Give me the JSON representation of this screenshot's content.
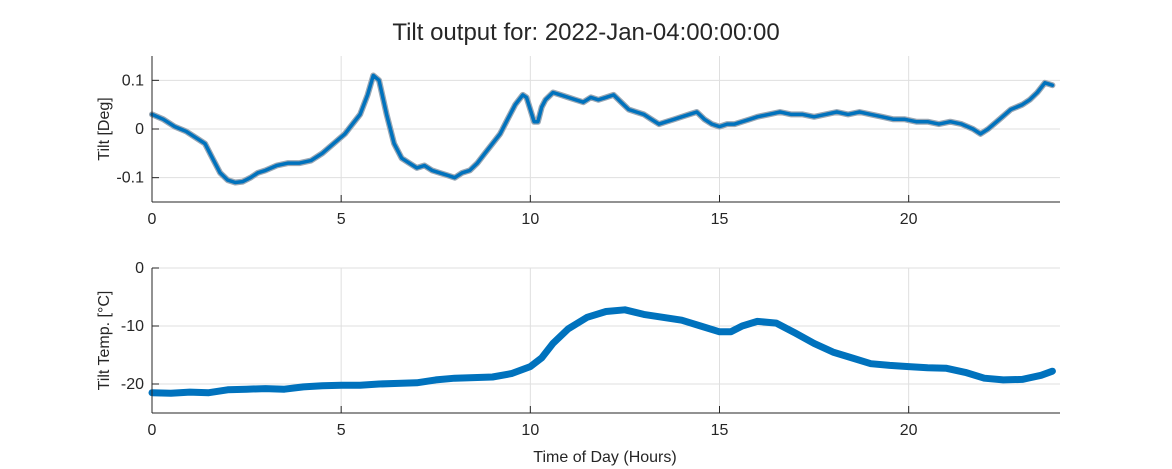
{
  "figure": {
    "title": "Tilt output for: 2022-Jan-04:00:00:00",
    "xlabel": "Time of Day (Hours)"
  },
  "chart_data": [
    {
      "type": "line",
      "ylabel": "Tilt [Deg]",
      "xlabel": "",
      "xlim": [
        0,
        24
      ],
      "ylim": [
        -0.15,
        0.15
      ],
      "xticks": [
        0,
        5,
        10,
        15,
        20
      ],
      "yticks": [
        -0.1,
        0,
        0.1
      ],
      "ytick_labels": [
        "-0.1",
        "0",
        "0.1"
      ],
      "grid": true,
      "color": "#0072BD",
      "x": [
        0,
        0.3,
        0.6,
        0.9,
        1.2,
        1.4,
        1.6,
        1.8,
        2.0,
        2.2,
        2.4,
        2.6,
        2.8,
        3.0,
        3.3,
        3.6,
        3.9,
        4.2,
        4.5,
        4.8,
        5.1,
        5.3,
        5.5,
        5.7,
        5.85,
        6.0,
        6.2,
        6.4,
        6.6,
        6.8,
        7.0,
        7.2,
        7.4,
        7.6,
        7.8,
        8.0,
        8.2,
        8.4,
        8.6,
        8.8,
        9.0,
        9.2,
        9.4,
        9.6,
        9.8,
        9.9,
        10.0,
        10.1,
        10.2,
        10.3,
        10.4,
        10.6,
        10.8,
        11.0,
        11.2,
        11.4,
        11.6,
        11.8,
        12.0,
        12.2,
        12.4,
        12.6,
        12.8,
        13.0,
        13.2,
        13.4,
        13.6,
        13.8,
        14.0,
        14.2,
        14.4,
        14.6,
        14.8,
        15.0,
        15.2,
        15.4,
        15.6,
        15.8,
        16.0,
        16.3,
        16.6,
        16.9,
        17.2,
        17.5,
        17.8,
        18.1,
        18.4,
        18.7,
        19.0,
        19.3,
        19.6,
        19.9,
        20.2,
        20.5,
        20.8,
        21.1,
        21.4,
        21.7,
        21.9,
        22.1,
        22.4,
        22.7,
        23.0,
        23.2,
        23.4,
        23.6,
        23.8
      ],
      "values": [
        0.03,
        0.02,
        0.005,
        -0.005,
        -0.02,
        -0.03,
        -0.06,
        -0.09,
        -0.105,
        -0.11,
        -0.108,
        -0.1,
        -0.09,
        -0.085,
        -0.075,
        -0.07,
        -0.07,
        -0.065,
        -0.05,
        -0.03,
        -0.01,
        0.01,
        0.03,
        0.07,
        0.11,
        0.1,
        0.03,
        -0.03,
        -0.06,
        -0.07,
        -0.08,
        -0.075,
        -0.085,
        -0.09,
        -0.095,
        -0.1,
        -0.09,
        -0.085,
        -0.07,
        -0.05,
        -0.03,
        -0.01,
        0.02,
        0.05,
        0.07,
        0.065,
        0.04,
        0.015,
        0.015,
        0.045,
        0.06,
        0.075,
        0.07,
        0.065,
        0.06,
        0.055,
        0.065,
        0.06,
        0.065,
        0.07,
        0.055,
        0.04,
        0.035,
        0.03,
        0.02,
        0.01,
        0.015,
        0.02,
        0.025,
        0.03,
        0.035,
        0.02,
        0.01,
        0.005,
        0.01,
        0.01,
        0.015,
        0.02,
        0.025,
        0.03,
        0.035,
        0.03,
        0.03,
        0.025,
        0.03,
        0.035,
        0.03,
        0.035,
        0.03,
        0.025,
        0.02,
        0.02,
        0.015,
        0.015,
        0.01,
        0.015,
        0.01,
        0.0,
        -0.01,
        0.0,
        0.02,
        0.04,
        0.05,
        0.06,
        0.075,
        0.095,
        0.09
      ]
    },
    {
      "type": "line",
      "ylabel": "Tilt Temp. [°C]",
      "xlabel": "Time of Day (Hours)",
      "xlim": [
        0,
        24
      ],
      "ylim": [
        -25,
        0
      ],
      "xticks": [
        0,
        5,
        10,
        15,
        20
      ],
      "yticks": [
        -20,
        -10,
        0
      ],
      "ytick_labels": [
        "-20",
        "-10",
        "0"
      ],
      "grid": true,
      "color": "#0072BD",
      "x": [
        0,
        0.5,
        1.0,
        1.5,
        2.0,
        2.5,
        3.0,
        3.5,
        4.0,
        4.5,
        5.0,
        5.5,
        6.0,
        6.5,
        7.0,
        7.5,
        8.0,
        8.5,
        9.0,
        9.5,
        10.0,
        10.3,
        10.6,
        11.0,
        11.5,
        12.0,
        12.5,
        13.0,
        13.5,
        14.0,
        14.5,
        15.0,
        15.3,
        15.6,
        16.0,
        16.5,
        17.0,
        17.5,
        18.0,
        18.5,
        19.0,
        19.5,
        20.0,
        20.5,
        21.0,
        21.5,
        22.0,
        22.5,
        23.0,
        23.5,
        23.8
      ],
      "values": [
        -21.5,
        -21.6,
        -21.4,
        -21.5,
        -21.0,
        -20.9,
        -20.8,
        -20.9,
        -20.5,
        -20.3,
        -20.2,
        -20.2,
        -20.0,
        -19.9,
        -19.8,
        -19.3,
        -19.0,
        -18.9,
        -18.8,
        -18.2,
        -17.0,
        -15.5,
        -13.0,
        -10.5,
        -8.5,
        -7.5,
        -7.2,
        -8.0,
        -8.5,
        -9.0,
        -10.0,
        -11.0,
        -11.0,
        -10.0,
        -9.2,
        -9.5,
        -11.2,
        -13.0,
        -14.5,
        -15.5,
        -16.5,
        -16.8,
        -17.0,
        -17.2,
        -17.3,
        -18.0,
        -19.0,
        -19.3,
        -19.2,
        -18.5,
        -17.8
      ]
    }
  ]
}
